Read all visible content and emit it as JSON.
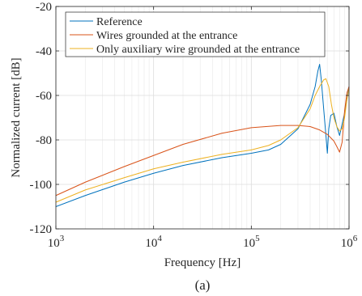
{
  "chart_data": {
    "type": "line",
    "xscale": "log",
    "xlim": [
      1000,
      1000000
    ],
    "ylim": [
      -120,
      -20
    ],
    "grid": true,
    "legend_position": "top-left",
    "xlabel": "Frequency [Hz]",
    "ylabel": "Normalized current [dB]",
    "caption": "(a)",
    "x_ticks": [
      {
        "value": 1000,
        "base": "10",
        "exp": "3"
      },
      {
        "value": 10000,
        "base": "10",
        "exp": "4"
      },
      {
        "value": 100000,
        "base": "10",
        "exp": "5"
      },
      {
        "value": 1000000,
        "base": "10",
        "exp": "6"
      }
    ],
    "y_ticks": [
      {
        "value": -120,
        "label": "-120"
      },
      {
        "value": -100,
        "label": "-100"
      },
      {
        "value": -80,
        "label": "-80"
      },
      {
        "value": -60,
        "label": "-60"
      },
      {
        "value": -40,
        "label": "-40"
      },
      {
        "value": -20,
        "label": "-20"
      }
    ],
    "series": [
      {
        "name": "Reference",
        "color": "#0072BD",
        "x": [
          1000,
          2000,
          5000,
          10000,
          20000,
          50000,
          100000,
          150000,
          200000,
          300000,
          400000,
          450000,
          480000,
          500000,
          520000,
          550000,
          580000,
          600000,
          620000,
          650000,
          700000,
          750000,
          800000,
          900000,
          1000000
        ],
        "y": [
          -110,
          -105,
          -99,
          -95,
          -91.5,
          -88,
          -86,
          -84.5,
          -82,
          -75,
          -64,
          -56,
          -49,
          -46,
          -53,
          -66,
          -78,
          -86,
          -75,
          -69,
          -68,
          -74,
          -78,
          -68,
          -56
        ]
      },
      {
        "name": "Wires grounded at the entrance",
        "color": "#D95319",
        "x": [
          1000,
          2000,
          5000,
          10000,
          20000,
          50000,
          100000,
          200000,
          300000,
          400000,
          500000,
          600000,
          700000,
          750000,
          800000,
          850000,
          900000,
          950000,
          1000000
        ],
        "y": [
          -105,
          -99,
          -92,
          -87,
          -82,
          -77,
          -74.5,
          -73.5,
          -73.5,
          -74,
          -75.5,
          -77.5,
          -80.5,
          -83,
          -85.5,
          -81,
          -67,
          -59,
          -56
        ]
      },
      {
        "name": "Only auxiliary wire grounded at the entrance",
        "color": "#EDB120",
        "x": [
          1000,
          2000,
          5000,
          10000,
          20000,
          50000,
          100000,
          150000,
          200000,
          300000,
          400000,
          450000,
          500000,
          550000,
          580000,
          620000,
          660000,
          700000,
          750000,
          800000,
          850000,
          900000,
          950000,
          1000000
        ],
        "y": [
          -108,
          -102.5,
          -97,
          -93,
          -90,
          -86.5,
          -84.5,
          -82.5,
          -80,
          -74.5,
          -66,
          -60,
          -56,
          -53,
          -52.5,
          -56,
          -64,
          -70,
          -74,
          -76,
          -75,
          -70,
          -62,
          -57
        ]
      }
    ]
  }
}
